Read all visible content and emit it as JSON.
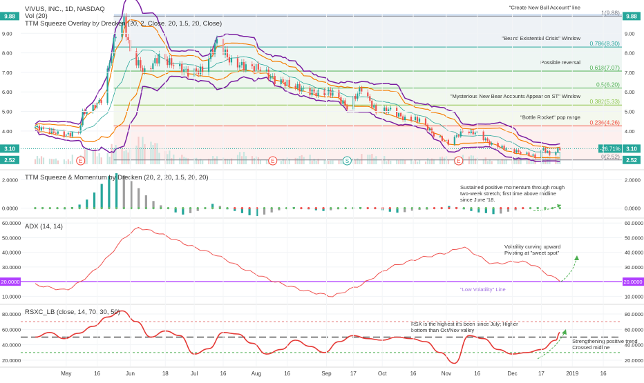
{
  "chart_data": [
    {
      "type": "candlestick",
      "header": "VIVUS, INC., 1D, NASDAQ",
      "indicator_labels": [
        "Vol (20)",
        "TTM Squeeze Overlay by Drecken (20, 2, Close, 20, 1.5, 20, Close)"
      ],
      "ylim": [
        2.3,
        10.0
      ],
      "y_ticks": [
        "4.00",
        "5.00",
        "6.00",
        "7.00",
        "8.00",
        "9.00"
      ],
      "price_badges": {
        "high": "9.88",
        "last": "3.10",
        "low": "2.52",
        "change": "-26.71%"
      },
      "fib_levels": [
        {
          "label": "1(9.88)",
          "value": 9.88,
          "color": "#787b86"
        },
        {
          "label": "0.786(8.30)",
          "value": 8.3,
          "color": "#26a69a"
        },
        {
          "label": "0.618(7.07)",
          "value": 7.07,
          "color": "#4caf50"
        },
        {
          "label": "0.5(6.20)",
          "value": 6.2,
          "color": "#4caf50"
        },
        {
          "label": "0.382(5.33)",
          "value": 5.33,
          "color": "#8bc34a"
        },
        {
          "label": "0.236(4.26)",
          "value": 4.26,
          "color": "#f44336"
        },
        {
          "label": "0(2.52)",
          "value": 2.52,
          "color": "#787b86"
        }
      ],
      "annotations": [
        {
          "text": "\"Create New Bull Account\" line",
          "at": 9.88
        },
        {
          "text": "\"Bears' Existential Crisis\" Window",
          "at": 8.3
        },
        {
          "text": "Possible reversal",
          "at": 7.07
        },
        {
          "text": "\"Mysterious New Bear Accounts Appear on ST\" Window",
          "at": 5.33
        },
        {
          "text": "\"Bottle Rocket\" pop range",
          "at": 4.26
        }
      ],
      "event_markers": [
        {
          "symbol": "E",
          "date": "2018-05-08",
          "color": "#f44336"
        },
        {
          "symbol": "E",
          "date": "2018-08-09",
          "color": "#f44336"
        },
        {
          "symbol": "S",
          "date": "2018-09-14",
          "color": "#26a69a"
        },
        {
          "symbol": "E",
          "date": "2018-11-07",
          "color": "#f44336"
        }
      ],
      "close_path": [
        [
          "2018-04-16",
          4.2
        ],
        [
          "2018-04-23",
          4.0
        ],
        [
          "2018-04-30",
          3.8
        ],
        [
          "2018-05-07",
          3.9
        ],
        [
          "2018-05-09",
          4.9
        ],
        [
          "2018-05-14",
          5.2
        ],
        [
          "2018-05-18",
          5.6
        ],
        [
          "2018-05-22",
          7.5
        ],
        [
          "2018-05-25",
          9.0
        ],
        [
          "2018-05-29",
          9.6
        ],
        [
          "2018-06-01",
          8.0
        ],
        [
          "2018-06-08",
          7.0
        ],
        [
          "2018-06-15",
          7.8
        ],
        [
          "2018-06-22",
          7.4
        ],
        [
          "2018-06-29",
          7.0
        ],
        [
          "2018-07-06",
          7.1
        ],
        [
          "2018-07-13",
          8.6
        ],
        [
          "2018-07-20",
          7.5
        ],
        [
          "2018-07-27",
          7.3
        ],
        [
          "2018-08-03",
          7.2
        ],
        [
          "2018-08-10",
          6.6
        ],
        [
          "2018-08-17",
          6.4
        ],
        [
          "2018-08-24",
          6.1
        ],
        [
          "2018-08-31",
          5.9
        ],
        [
          "2018-09-07",
          6.0
        ],
        [
          "2018-09-14",
          5.2
        ],
        [
          "2018-09-21",
          6.2
        ],
        [
          "2018-09-28",
          5.0
        ],
        [
          "2018-10-05",
          5.1
        ],
        [
          "2018-10-12",
          4.6
        ],
        [
          "2018-10-19",
          4.6
        ],
        [
          "2018-10-26",
          3.8
        ],
        [
          "2018-11-02",
          3.4
        ],
        [
          "2018-11-09",
          4.0
        ],
        [
          "2018-11-16",
          3.9
        ],
        [
          "2018-11-23",
          3.3
        ],
        [
          "2018-11-30",
          3.1
        ],
        [
          "2018-12-07",
          2.9
        ],
        [
          "2018-12-14",
          2.7
        ],
        [
          "2018-12-18",
          3.1
        ],
        [
          "2018-12-21",
          2.8
        ],
        [
          "2018-12-26",
          3.1
        ]
      ],
      "vol_bars": [
        0.3,
        0.22,
        0.18,
        0.35,
        0.6,
        0.4,
        0.75,
        0.55,
        1.0,
        0.85,
        0.5,
        0.35,
        0.25,
        0.2,
        0.3,
        0.22,
        0.45,
        0.3,
        0.18,
        0.2,
        0.25,
        0.35,
        0.2,
        0.15,
        0.18,
        0.22,
        0.4,
        0.3,
        0.18,
        0.2,
        0.15,
        0.22,
        0.3,
        0.25,
        0.35,
        0.25,
        0.18,
        0.2,
        0.28,
        0.22,
        0.3,
        0.45
      ]
    },
    {
      "type": "histogram",
      "title": "TTM Squeeze & Momentum by Drecken (20, 2, 20, 1.5, 20, 20)",
      "ylim": [
        -0.6,
        2.5
      ],
      "y_ticks": [
        "0.0000",
        "2.0000"
      ],
      "annotation": "Sustained positive momentum through rough two-week stretch; first time above midline since June '18.",
      "momentum": [
        0.04,
        0.06,
        0.02,
        -0.05,
        -0.08,
        0.08,
        0.25,
        0.6,
        1.1,
        1.7,
        2.25,
        2.45,
        2.3,
        1.9,
        1.4,
        0.9,
        0.5,
        0.2,
        -0.05,
        -0.3,
        -0.45,
        -0.35,
        -0.2,
        0.05,
        0.3,
        0.15,
        -0.08,
        -0.2,
        -0.35,
        -0.5,
        -0.55,
        -0.45,
        -0.3,
        -0.15,
        0.0,
        0.08,
        0.0,
        -0.08,
        -0.15,
        -0.2,
        -0.15,
        -0.08,
        -0.03,
        0.05,
        0.08,
        0.05,
        -0.05,
        -0.15,
        -0.25,
        -0.32,
        -0.28,
        -0.18,
        -0.12,
        -0.1,
        -0.05,
        0.05,
        0.15,
        0.08,
        -0.08,
        -0.2,
        -0.3,
        -0.35,
        -0.42,
        -0.38,
        -0.25,
        -0.15,
        -0.05,
        0.02,
        0.06,
        0.05,
        0.04,
        0.03
      ]
    },
    {
      "type": "line",
      "title": "ADX (14, 14)",
      "ylim": [
        5,
        62
      ],
      "y_ticks": [
        "10.0000",
        "20.0000",
        "30.0000",
        "40.0000",
        "50.0000",
        "60.0000"
      ],
      "reference": {
        "value": 20,
        "label": "\"Low Volatility\" Line",
        "badge": "20.0000"
      },
      "annotation": "Volatility curving upward Pivoting at \"sweet spot\"",
      "x": [
        "2018-04-16",
        "2018-04-23",
        "2018-05-01",
        "2018-05-08",
        "2018-05-15",
        "2018-05-22",
        "2018-05-29",
        "2018-06-05",
        "2018-06-15",
        "2018-06-29",
        "2018-07-13",
        "2018-07-27",
        "2018-08-10",
        "2018-08-24",
        "2018-09-07",
        "2018-09-21",
        "2018-10-05",
        "2018-10-19",
        "2018-11-02",
        "2018-11-09",
        "2018-11-16",
        "2018-11-23",
        "2018-12-07",
        "2018-12-14",
        "2018-12-21",
        "2018-12-26"
      ],
      "values": [
        18,
        16,
        14,
        20,
        28,
        38,
        50,
        57,
        53,
        45,
        38,
        28,
        20,
        14,
        10,
        18,
        30,
        36,
        40,
        44,
        38,
        32,
        34,
        31,
        24,
        21
      ]
    },
    {
      "type": "line",
      "title": "RSXC_LB (close, 14, 70, 30, 50)",
      "ylim": [
        12,
        88
      ],
      "y_ticks": [
        "20.0000",
        "40.0000",
        "60.0000",
        "80.0000"
      ],
      "levels": [
        70,
        50,
        30
      ],
      "annotations": [
        "RSX is the highest it's been since July; Higher bottom than Oct/Nov valley",
        "Strengthening positive trend Crossed midline"
      ],
      "x": [
        "2018-04-16",
        "2018-04-23",
        "2018-04-30",
        "2018-05-07",
        "2018-05-14",
        "2018-05-21",
        "2018-05-28",
        "2018-06-04",
        "2018-06-11",
        "2018-06-18",
        "2018-06-25",
        "2018-07-02",
        "2018-07-09",
        "2018-07-16",
        "2018-07-23",
        "2018-07-30",
        "2018-08-06",
        "2018-08-13",
        "2018-08-20",
        "2018-08-27",
        "2018-09-03",
        "2018-09-10",
        "2018-09-17",
        "2018-09-24",
        "2018-10-01",
        "2018-10-08",
        "2018-10-15",
        "2018-10-22",
        "2018-10-29",
        "2018-11-05",
        "2018-11-12",
        "2018-11-19",
        "2018-11-26",
        "2018-12-03",
        "2018-12-10",
        "2018-12-17",
        "2018-12-24",
        "2018-12-26"
      ],
      "values": [
        50,
        56,
        48,
        55,
        64,
        76,
        84,
        70,
        50,
        58,
        52,
        28,
        35,
        56,
        54,
        42,
        28,
        34,
        46,
        38,
        30,
        44,
        52,
        48,
        46,
        50,
        48,
        44,
        30,
        16,
        52,
        48,
        34,
        28,
        30,
        34,
        46,
        56
      ]
    }
  ],
  "x_axis": {
    "labels": [
      "May",
      "16",
      "Jun",
      "18",
      "Jul",
      "16",
      "Aug",
      "16",
      "Sep",
      "17",
      "Oct",
      "16",
      "Nov",
      "16",
      "Dec",
      "17",
      "2019",
      "16"
    ],
    "dates": [
      "2018-05-01",
      "2018-05-16",
      "2018-06-01",
      "2018-06-18",
      "2018-07-02",
      "2018-07-16",
      "2018-08-01",
      "2018-08-16",
      "2018-09-04",
      "2018-09-17",
      "2018-10-01",
      "2018-10-16",
      "2018-11-01",
      "2018-11-16",
      "2018-12-03",
      "2018-12-17",
      "2019-01-01",
      "2019-01-16"
    ],
    "range": [
      "2018-04-09",
      "2019-01-25"
    ]
  },
  "colors": {
    "up": "#26a69a",
    "down": "#ef5350",
    "bb": "#7b1fa2",
    "ema": "#f57c00",
    "mid": "#26a69a",
    "adx": "#ef5350",
    "rsx": "#e53935",
    "badge": "#26a69a",
    "ref": "#b040ff",
    "arrow": "#4caf50"
  }
}
